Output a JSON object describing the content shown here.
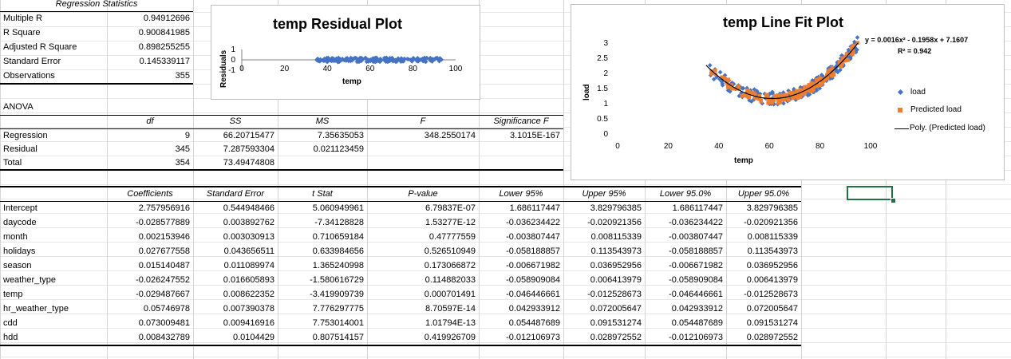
{
  "regression_statistics": {
    "header": "Regression Statistics",
    "rows": [
      {
        "label": "Multiple R",
        "value": "0.94912696"
      },
      {
        "label": "R Square",
        "value": "0.900841985"
      },
      {
        "label": "Adjusted R Square",
        "value": "0.898255255"
      },
      {
        "label": "Standard Error",
        "value": "0.145339117"
      },
      {
        "label": "Observations",
        "value": "355"
      }
    ]
  },
  "anova": {
    "title": "ANOVA",
    "headers": [
      "df",
      "SS",
      "MS",
      "F",
      "Significance F"
    ],
    "rows": [
      {
        "label": "Regression",
        "df": "9",
        "ss": "66.20715477",
        "ms": "7.35635053",
        "f": "348.2550174",
        "sigf": "3.1015E-167"
      },
      {
        "label": "Residual",
        "df": "345",
        "ss": "7.287593304",
        "ms": "0.021123459",
        "f": "",
        "sigf": ""
      },
      {
        "label": "Total",
        "df": "354",
        "ss": "73.49474808",
        "ms": "",
        "f": "",
        "sigf": ""
      }
    ]
  },
  "coefficients": {
    "headers": [
      "Coefficients",
      "Standard Error",
      "t Stat",
      "P-value",
      "Lower 95%",
      "Upper 95%",
      "Lower 95.0%",
      "Upper 95.0%"
    ],
    "rows": [
      {
        "label": "Intercept",
        "vals": [
          "2.757956916",
          "0.544948466",
          "5.060949961",
          "6.79837E-07",
          "1.686117447",
          "3.829796385",
          "1.686117447",
          "3.829796385"
        ]
      },
      {
        "label": "daycode",
        "vals": [
          "-0.028577889",
          "0.003892762",
          "-7.34128828",
          "1.53277E-12",
          "-0.036234422",
          "-0.020921356",
          "-0.036234422",
          "-0.020921356"
        ]
      },
      {
        "label": "month",
        "vals": [
          "0.002153946",
          "0.003030913",
          "0.710659184",
          "0.47777559",
          "-0.003807447",
          "0.008115339",
          "-0.003807447",
          "0.008115339"
        ]
      },
      {
        "label": "holidays",
        "vals": [
          "0.027677558",
          "0.043656511",
          "0.633984656",
          "0.526510949",
          "-0.058188857",
          "0.113543973",
          "-0.058188857",
          "0.113543973"
        ]
      },
      {
        "label": "season",
        "vals": [
          "0.015140487",
          "0.011089974",
          "1.365240998",
          "0.173066872",
          "-0.006671982",
          "0.036952956",
          "-0.006671982",
          "0.036952956"
        ]
      },
      {
        "label": "weather_type",
        "vals": [
          "-0.026247552",
          "0.016605893",
          "-1.580616729",
          "0.114882033",
          "-0.058909084",
          "0.006413979",
          "-0.058909084",
          "0.006413979"
        ]
      },
      {
        "label": "temp",
        "vals": [
          "-0.029487667",
          "0.008622352",
          "-3.419909739",
          "0.000701491",
          "-0.046446661",
          "-0.012528673",
          "-0.046446661",
          "-0.012528673"
        ]
      },
      {
        "label": "hr_weather_type",
        "vals": [
          "0.05746978",
          "0.007390378",
          "7.776297775",
          "8.70597E-14",
          "0.042933912",
          "0.072005647",
          "0.042933912",
          "0.072005647"
        ]
      },
      {
        "label": "cdd",
        "vals": [
          "0.073009481",
          "0.009416916",
          "7.753014001",
          "1.01794E-13",
          "0.054487689",
          "0.091531274",
          "0.054487689",
          "0.091531274"
        ]
      },
      {
        "label": "hdd",
        "vals": [
          "0.008432789",
          "0.0104429",
          "0.807514157",
          "0.419926709",
          "-0.012106973",
          "0.028972552",
          "-0.012106973",
          "0.028972552"
        ]
      }
    ]
  },
  "chart_data": [
    {
      "type": "scatter",
      "title": "temp  Residual Plot",
      "xlabel": "temp",
      "ylabel": "Residuals",
      "xticks": [
        "0",
        "20",
        "40",
        "60",
        "80",
        "100"
      ],
      "yticks": [
        "1",
        "0",
        "-1"
      ],
      "xlim": [
        0,
        100
      ],
      "ylim": [
        -1,
        1
      ],
      "series": [
        {
          "color": "#4472c4",
          "x_range": [
            35,
            95
          ],
          "y_range": [
            -0.2,
            0.2
          ]
        }
      ]
    },
    {
      "type": "scatter",
      "title": "temp Line Fit  Plot",
      "xlabel": "temp",
      "ylabel": "load",
      "xticks": [
        "0",
        "20",
        "40",
        "60",
        "80",
        "100"
      ],
      "yticks": [
        "3",
        "2.5",
        "2",
        "1.5",
        "1",
        "0.5",
        "0"
      ],
      "xlim": [
        0,
        100
      ],
      "ylim": [
        0,
        3
      ],
      "equation": "y = 0.0016x² - 0.1958x + 7.1607",
      "r2": "R² = 0.942",
      "legend": [
        {
          "label": "load",
          "color": "#4472c4"
        },
        {
          "label": "Predicted load",
          "color": "#ed7d31"
        },
        {
          "label": "Poly. (Predicted load)",
          "color": "#000000"
        }
      ],
      "trend": {
        "a": 0.0016,
        "b": -0.1958,
        "c": 7.1607,
        "x_range": [
          35,
          95
        ]
      }
    }
  ]
}
